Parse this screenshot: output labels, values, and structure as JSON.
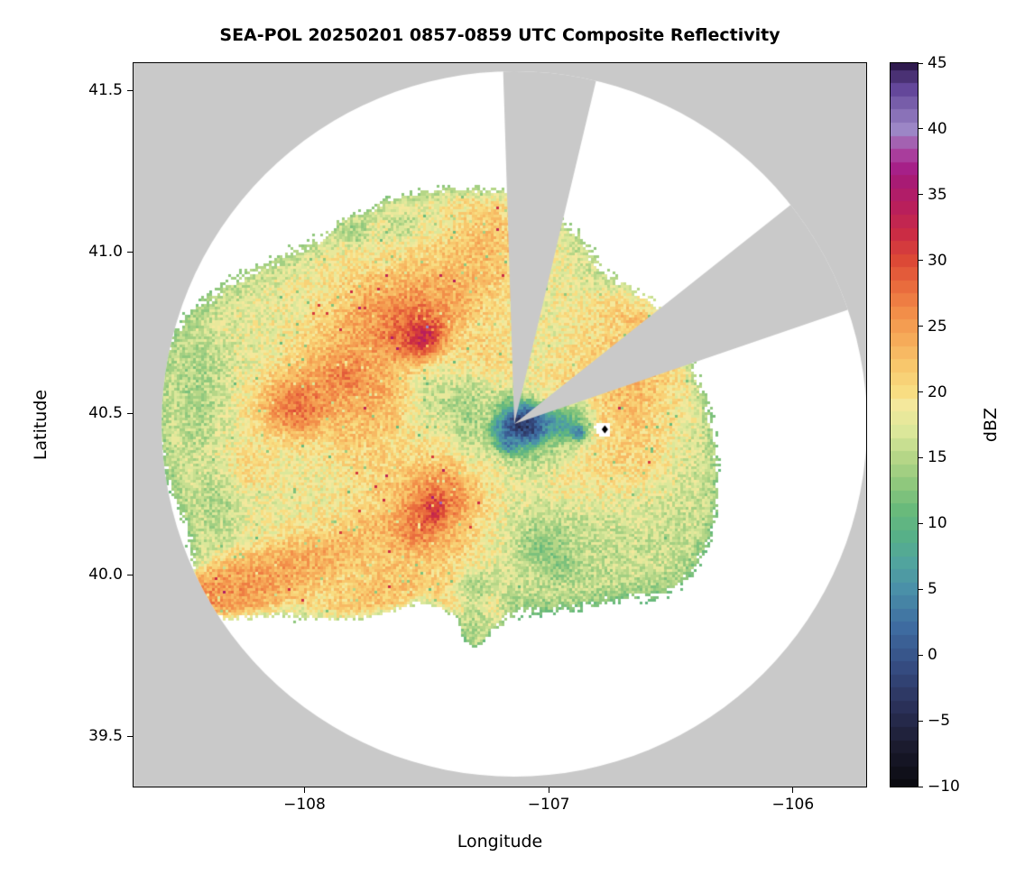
{
  "title": "SEA-POL 20250201 0857-0859 UTC Composite Reflectivity",
  "axes": {
    "xlabel": "Longitude",
    "ylabel": "Latitude",
    "xlim": [
      -108.7,
      -105.7
    ],
    "ylim": [
      39.344,
      41.584
    ],
    "x_ticks": [
      {
        "v": -108,
        "label": "−108"
      },
      {
        "v": -107,
        "label": "−107"
      },
      {
        "v": -106,
        "label": "−106"
      }
    ],
    "y_ticks": [
      {
        "v": 41.5,
        "label": "41.5"
      },
      {
        "v": 41.0,
        "label": "41.0"
      },
      {
        "v": 40.5,
        "label": "40.5"
      },
      {
        "v": 40.0,
        "label": "40.0"
      },
      {
        "v": 39.5,
        "label": "39.5"
      }
    ]
  },
  "colorbar": {
    "label": "dBZ",
    "min": -10,
    "max": 45,
    "ticks": [
      {
        "v": 45,
        "label": "45"
      },
      {
        "v": 40,
        "label": "40"
      },
      {
        "v": 35,
        "label": "35"
      },
      {
        "v": 30,
        "label": "30"
      },
      {
        "v": 25,
        "label": "25"
      },
      {
        "v": 20,
        "label": "20"
      },
      {
        "v": 15,
        "label": "15"
      },
      {
        "v": 10,
        "label": "10"
      },
      {
        "v": 5,
        "label": "5"
      },
      {
        "v": 0,
        "label": "0"
      },
      {
        "v": -5,
        "label": "−5"
      },
      {
        "v": -10,
        "label": "−10"
      }
    ]
  },
  "chart_data": {
    "type": "heatmap",
    "title": "SEA-POL 20250201 0857-0859 UTC Composite Reflectivity",
    "quantity": "Composite reflectivity (dBZ) on longitude-latitude grid",
    "radar_center": {
      "lon": -107.141,
      "lat": 40.467
    },
    "range_ring_deg": {
      "rx": 1.444,
      "ry": 1.092
    },
    "blocked_sectors_deg": [
      [
        76.6,
        91.8
      ],
      [
        18.9,
        38.4
      ]
    ],
    "colors": {
      "outside_coverage": "#c9c9c9",
      "coverage_background": "#ffffff",
      "frame": "#000000"
    },
    "site_marker": {
      "lon": -106.77,
      "lat": 40.45,
      "shape": "diamond",
      "color": "#000000"
    },
    "colormap_dbz_stops": [
      [
        -10,
        "#0a0a10"
      ],
      [
        -7,
        "#1b1b2e"
      ],
      [
        -4,
        "#2a3058"
      ],
      [
        -1,
        "#354b80"
      ],
      [
        2,
        "#3e6ba0"
      ],
      [
        5,
        "#4a90a8"
      ],
      [
        7,
        "#51a49e"
      ],
      [
        9,
        "#57b088"
      ],
      [
        11,
        "#69ba7b"
      ],
      [
        13,
        "#8fc87d"
      ],
      [
        15,
        "#b5d687"
      ],
      [
        17,
        "#dbe79a"
      ],
      [
        19,
        "#f4e89c"
      ],
      [
        20,
        "#f8dd82"
      ],
      [
        22,
        "#f8c76c"
      ],
      [
        24,
        "#f6ab59"
      ],
      [
        26,
        "#f28e49"
      ],
      [
        28,
        "#e96c3d"
      ],
      [
        30,
        "#dc4936"
      ],
      [
        32,
        "#cb2c44"
      ],
      [
        34,
        "#b91f5b"
      ],
      [
        36,
        "#a81b74"
      ],
      [
        37,
        "#a62088"
      ],
      [
        38,
        "#a93d9c"
      ],
      [
        40,
        "#9c86c6"
      ],
      [
        41,
        "#8a72b8"
      ],
      [
        43,
        "#64479a"
      ],
      [
        45,
        "#2f1a4e"
      ]
    ],
    "echo_fields": "lon, lat, sigma_lon_deg, sigma_lat_deg, rotation_deg, dbz, weight (negative weight = clear-air hole)",
    "echoes": [
      [
        -108.0,
        40.55,
        0.3,
        0.22,
        0,
        18,
        1
      ],
      [
        -107.62,
        40.72,
        0.3,
        0.2,
        30,
        19,
        1
      ],
      [
        -107.3,
        40.48,
        0.25,
        0.22,
        0,
        17,
        1
      ],
      [
        -107.55,
        40.33,
        0.3,
        0.18,
        0,
        19,
        1
      ],
      [
        -107.05,
        40.22,
        0.28,
        0.18,
        0,
        16,
        1
      ],
      [
        -106.78,
        40.5,
        0.2,
        0.2,
        0,
        20,
        1
      ],
      [
        -107.22,
        40.92,
        0.22,
        0.13,
        0,
        18,
        1
      ],
      [
        -107.9,
        40.12,
        0.28,
        0.13,
        15,
        19,
        1
      ],
      [
        -106.55,
        40.28,
        0.13,
        0.18,
        0,
        16,
        1
      ],
      [
        -108.28,
        40.44,
        0.15,
        0.18,
        0,
        16,
        1
      ],
      [
        -107.45,
        41.0,
        0.18,
        0.09,
        0,
        17,
        1
      ],
      [
        -106.9,
        40.12,
        0.14,
        0.09,
        0,
        15,
        1
      ],
      [
        -107.62,
        40.8,
        0.26,
        0.09,
        35,
        31,
        1.3
      ],
      [
        -107.55,
        40.76,
        0.11,
        0.055,
        35,
        36,
        1.5
      ],
      [
        -107.51,
        40.73,
        0.05,
        0.035,
        35,
        43,
        1.8
      ],
      [
        -107.95,
        40.55,
        0.2,
        0.075,
        15,
        30,
        1.3
      ],
      [
        -108.03,
        40.52,
        0.08,
        0.05,
        15,
        35,
        1.5
      ],
      [
        -107.83,
        40.62,
        0.06,
        0.04,
        0,
        33,
        1.4
      ],
      [
        -107.48,
        40.22,
        0.17,
        0.11,
        10,
        30,
        1.3
      ],
      [
        -107.44,
        40.25,
        0.08,
        0.055,
        10,
        35,
        1.5
      ],
      [
        -107.47,
        40.2,
        0.035,
        0.03,
        0,
        41,
        1.7
      ],
      [
        -107.54,
        40.16,
        0.06,
        0.045,
        0,
        33,
        1.4
      ],
      [
        -107.28,
        41.0,
        0.1,
        0.07,
        0,
        26,
        1.2
      ],
      [
        -106.68,
        40.57,
        0.1,
        0.13,
        0,
        25,
        1.2
      ],
      [
        -106.62,
        40.38,
        0.09,
        0.09,
        0,
        24,
        1.2
      ],
      [
        -106.88,
        40.3,
        0.11,
        0.07,
        0,
        23,
        1.1
      ],
      [
        -107.3,
        40.68,
        0.1,
        0.07,
        0,
        24,
        1.1
      ],
      [
        -108.1,
        40.02,
        0.22,
        0.05,
        20,
        27,
        1.3
      ],
      [
        -107.85,
        40.08,
        0.18,
        0.045,
        20,
        25,
        1.2
      ],
      [
        -107.7,
        39.97,
        0.13,
        0.04,
        15,
        23,
        1.2
      ],
      [
        -107.42,
        39.98,
        0.13,
        0.035,
        -35,
        21,
        1.2
      ],
      [
        -108.24,
        40.34,
        0.09,
        0.055,
        0,
        24,
        1.1
      ],
      [
        -107.75,
        40.44,
        0.11,
        0.075,
        0,
        26,
        1.1
      ],
      [
        -107.7,
        40.55,
        0.09,
        0.055,
        0,
        28,
        1.1
      ],
      [
        -106.92,
        40.55,
        0.09,
        0.07,
        0,
        22,
        1
      ],
      [
        -107.35,
        40.9,
        0.12,
        0.07,
        -20,
        26,
        1.1
      ],
      [
        -106.75,
        40.75,
        0.05,
        0.04,
        0,
        20,
        1
      ],
      [
        -107.1,
        40.46,
        0.055,
        0.035,
        0,
        -8,
        8
      ],
      [
        -107.0,
        40.47,
        0.06,
        0.03,
        0,
        3,
        5
      ],
      [
        -107.18,
        40.44,
        0.04,
        0.03,
        0,
        2,
        4
      ],
      [
        -106.92,
        40.45,
        0.05,
        0.025,
        -10,
        4,
        3
      ],
      [
        -106.9,
        40.5,
        0.05,
        0.03,
        0,
        8,
        2
      ],
      [
        -107.15,
        40.52,
        0.05,
        0.03,
        0,
        9,
        2
      ],
      [
        -107.33,
        40.5,
        0.05,
        0.09,
        0,
        11,
        2
      ],
      [
        -107.0,
        40.38,
        0.08,
        0.04,
        0,
        12,
        2
      ],
      [
        -107.12,
        40.4,
        0.06,
        0.03,
        0,
        9,
        2
      ],
      [
        -106.88,
        40.44,
        0.015,
        0.012,
        0,
        -3,
        6
      ],
      [
        -107.16,
        40.4,
        0.02,
        0.015,
        0,
        -2,
        5
      ],
      [
        -107.02,
        40.1,
        0.06,
        0.04,
        0,
        11,
        2
      ],
      [
        -106.95,
        40.04,
        0.04,
        0.03,
        0,
        12,
        2
      ],
      [
        -107.32,
        39.96,
        0.04,
        0.03,
        0,
        13,
        2
      ],
      [
        -107.3,
        39.86,
        0.03,
        0.04,
        0,
        15,
        2
      ],
      [
        -108.42,
        40.55,
        0.06,
        0.1,
        0,
        13,
        1.5
      ],
      [
        -108.35,
        40.25,
        0.05,
        0.08,
        0,
        14,
        1.5
      ],
      [
        -107.6,
        41.08,
        0.035,
        0.025,
        0,
        15,
        2
      ],
      [
        -107.79,
        41.06,
        0.03,
        0.02,
        0,
        14,
        2
      ],
      [
        -107.45,
        40.55,
        0.07,
        0.05,
        0,
        13,
        1.5
      ],
      [
        -106.77,
        40.45,
        0.05,
        0.035,
        0,
        0,
        -2.5
      ],
      [
        -106.85,
        40.47,
        0.03,
        0.02,
        0,
        0,
        -1.2
      ]
    ]
  }
}
